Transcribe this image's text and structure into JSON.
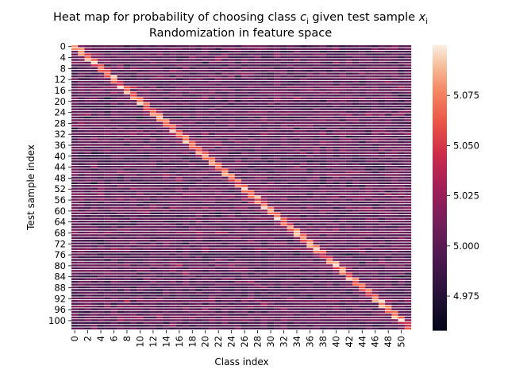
{
  "chart_data": {
    "type": "heatmap",
    "title": "Heat map for probability of choosing class c_i given test sample x_i",
    "title_parts": [
      "Heat map for probability of choosing class ",
      "c",
      "i",
      " given test sample ",
      "x",
      "i"
    ],
    "subtitle": "Randomization in feature space",
    "xlabel": "Class index",
    "ylabel": "Test sample index",
    "n_cols": 52,
    "n_rows": 104,
    "x_tick_labels": [
      "0",
      "2",
      "4",
      "6",
      "8",
      "10",
      "12",
      "14",
      "16",
      "18",
      "20",
      "22",
      "24",
      "26",
      "28",
      "30",
      "32",
      "34",
      "36",
      "38",
      "40",
      "42",
      "44",
      "46",
      "48",
      "50"
    ],
    "y_tick_labels": [
      "0",
      "4",
      "8",
      "12",
      "16",
      "20",
      "24",
      "28",
      "32",
      "36",
      "40",
      "44",
      "48",
      "52",
      "56",
      "60",
      "64",
      "68",
      "72",
      "76",
      "80",
      "84",
      "88",
      "92",
      "96",
      "100"
    ],
    "value_range": [
      4.958,
      5.1
    ],
    "colorbar_ticks": [
      4.975,
      5.0,
      5.025,
      5.05,
      5.075
    ],
    "colorbar_tick_labels": [
      "4.975",
      "5.000",
      "5.025",
      "5.050",
      "5.075"
    ],
    "colormap": "rocket",
    "row_separators": "white",
    "structure": "diagonal band of highest values where class index ≈ test sample index / 2; background values mostly 4.98–5.02"
  }
}
